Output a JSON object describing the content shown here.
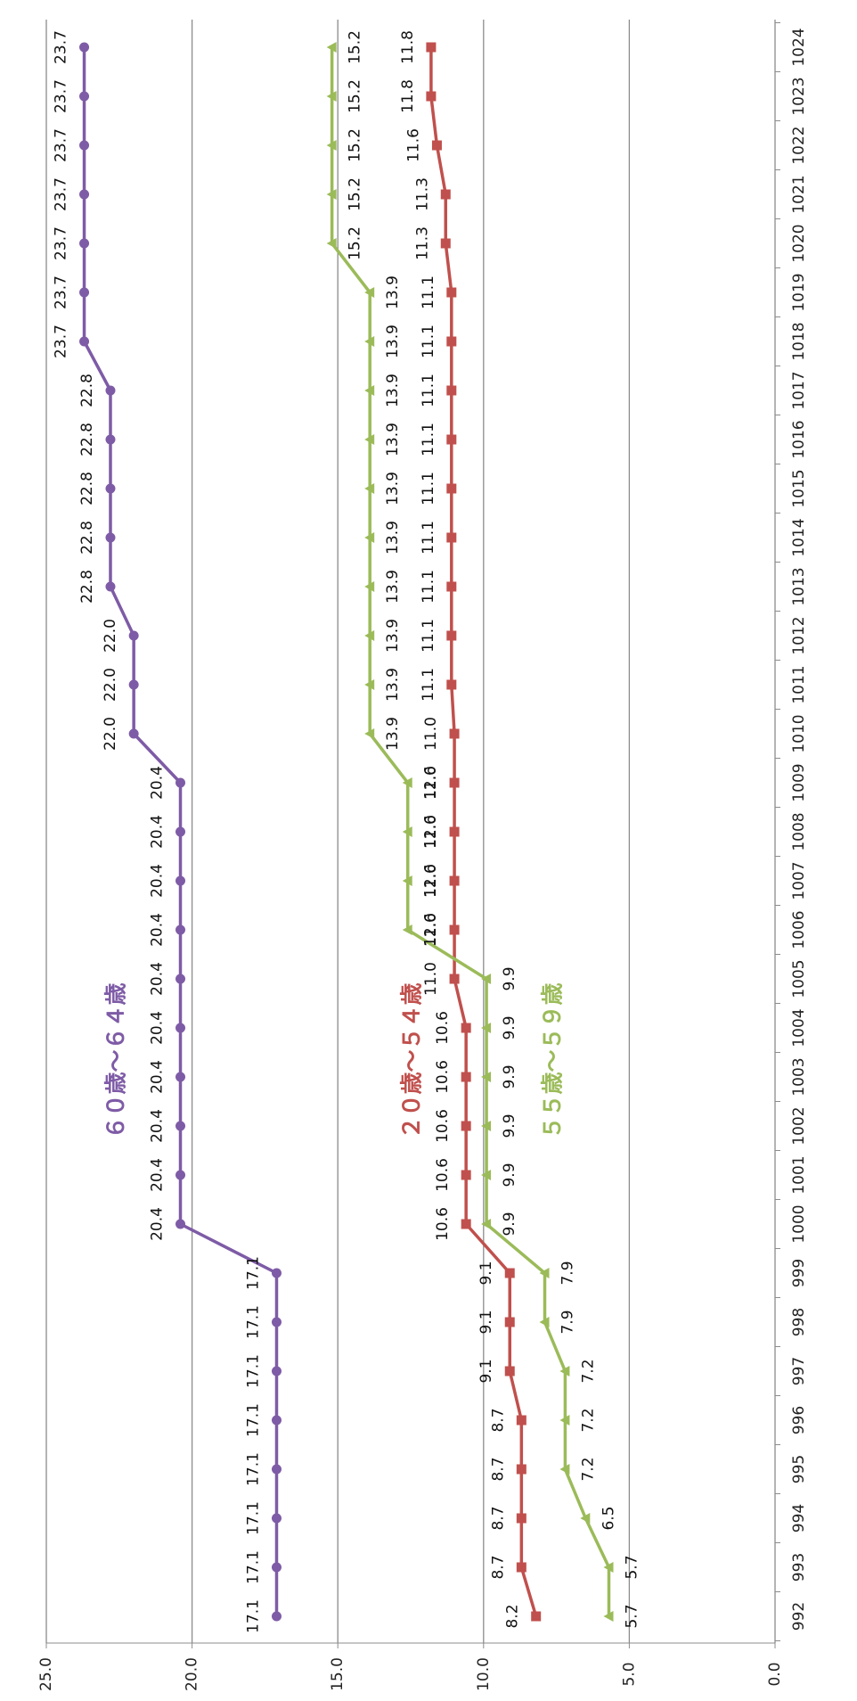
{
  "chart_data": {
    "type": "line",
    "x": [
      "992",
      "993",
      "994",
      "995",
      "996",
      "997",
      "998",
      "999",
      "1000",
      "1001",
      "1002",
      "1003",
      "1004",
      "1005",
      "1006",
      "1007",
      "1008",
      "1009",
      "1010",
      "1011",
      "1012",
      "1013",
      "1014",
      "1015",
      "1016",
      "1017",
      "1018",
      "1019",
      "1020",
      "1021",
      "1022",
      "1023",
      "1024"
    ],
    "ylim": [
      0,
      25
    ],
    "yticks": [
      "0.0",
      "5.0",
      "10.0",
      "15.0",
      "20.0",
      "25.0"
    ],
    "grid": true,
    "series": [
      {
        "name": "６０歳～６４歳",
        "color": "#7E5BA6",
        "marker": "circle",
        "values": [
          17.1,
          17.1,
          17.1,
          17.1,
          17.1,
          17.1,
          17.1,
          17.1,
          20.4,
          20.4,
          20.4,
          20.4,
          20.4,
          20.4,
          20.4,
          20.4,
          20.4,
          20.4,
          22.0,
          22.0,
          22.0,
          22.8,
          22.8,
          22.8,
          22.8,
          22.8,
          23.7,
          23.7,
          23.7,
          23.7,
          23.7,
          23.7,
          23.7
        ],
        "labels": [
          "17.1",
          "17.1",
          "17.1",
          "17.1",
          "17.1",
          "17.1",
          "17.1",
          "17.1",
          "20.4",
          "20.4",
          "20.4",
          "20.4",
          "20.4",
          "20.4",
          "20.4",
          "20.4",
          "20.4",
          "20.4",
          "22.0",
          "22.0",
          "22.0",
          "22.8",
          "22.8",
          "22.8",
          "22.8",
          "22.8",
          "23.7",
          "23.7",
          "23.7",
          "23.7",
          "23.7",
          "23.7",
          "23.7"
        ]
      },
      {
        "name": "２０歳～５４歳",
        "color": "#C0504D",
        "marker": "square",
        "values": [
          8.2,
          8.7,
          8.7,
          8.7,
          8.7,
          9.1,
          9.1,
          9.1,
          10.6,
          10.6,
          10.6,
          10.6,
          10.6,
          11.0,
          11.0,
          11.0,
          11.0,
          11.0,
          11.0,
          11.1,
          11.1,
          11.1,
          11.1,
          11.1,
          11.1,
          11.1,
          11.1,
          11.1,
          11.3,
          11.3,
          11.6,
          11.8,
          11.8
        ],
        "labels": [
          "8.2",
          "8.7",
          "8.7",
          "8.7",
          "8.7",
          "9.1",
          "9.1",
          "9.1",
          "10.6",
          "10.6",
          "10.6",
          "10.6",
          "10.6",
          "11.0",
          "11.0",
          "11.0",
          "11.0",
          "11.0",
          "11.0",
          "11.1",
          "11.1",
          "11.1",
          "11.1",
          "11.1",
          "11.1",
          "11.1",
          "11.1",
          "11.1",
          "11.3",
          "11.3",
          "11.6",
          "11.8",
          "11.8"
        ]
      },
      {
        "name": "５５歳～５９歳",
        "color": "#9BBB59",
        "marker": "triangle",
        "values": [
          5.7,
          5.7,
          6.5,
          7.2,
          7.2,
          7.2,
          7.9,
          7.9,
          9.9,
          9.9,
          9.9,
          9.9,
          9.9,
          9.9,
          12.6,
          12.6,
          12.6,
          12.6,
          13.9,
          13.9,
          13.9,
          13.9,
          13.9,
          13.9,
          13.9,
          13.9,
          13.9,
          13.9,
          15.2,
          15.2,
          15.2,
          15.2,
          15.2
        ],
        "labels": [
          "5.7",
          "5.7",
          "6.5",
          "7.2",
          "7.2",
          "7.2",
          "7.9",
          "7.9",
          "9.9",
          "9.9",
          "9.9",
          "9.9",
          "9.9",
          "9.9",
          "12.6",
          "12.6",
          "12.6",
          "12.6",
          "13.9",
          "13.9",
          "13.9",
          "13.9",
          "13.9",
          "13.9",
          "13.9",
          "13.9",
          "13.9",
          "13.9",
          "15.2",
          "15.2",
          "15.2",
          "15.2",
          "15.2"
        ]
      }
    ]
  }
}
